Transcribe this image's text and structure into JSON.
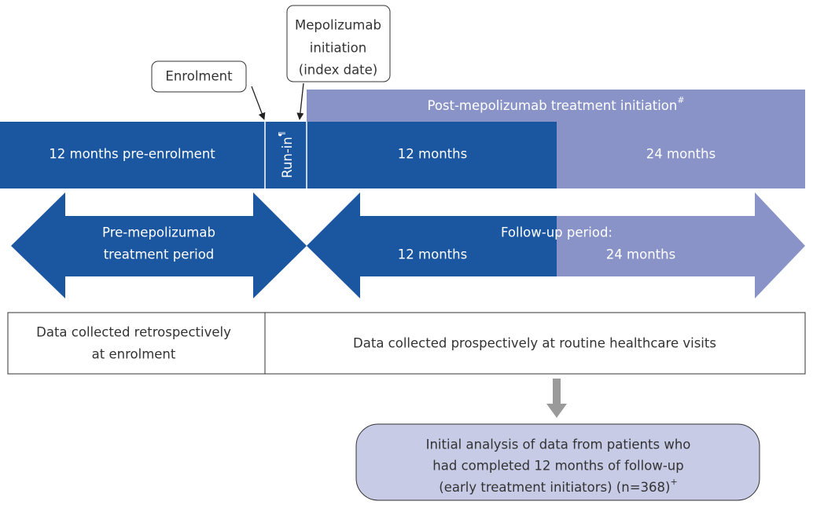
{
  "enrolment_callout": "Enrolment",
  "initiation_callout": [
    "Mepolizumab",
    "initiation",
    "(index date)"
  ],
  "post_bar": {
    "label": "Post-mepolizumab treatment initiation",
    "mark": "#"
  },
  "timeline": {
    "pre": "12 months pre-enrolment",
    "run_in": "Run-in",
    "run_in_mark": "¶",
    "months_12": "12 months",
    "months_24": "24 months"
  },
  "arrows": {
    "pre": [
      "Pre-mepolizumab",
      "treatment period"
    ],
    "follow_up": "Follow-up period:",
    "follow_12": "12 months",
    "follow_24": "24 months"
  },
  "collection": {
    "retro": [
      "Data collected retrospectively",
      "at enrolment"
    ],
    "prospective": "Data collected prospectively at routine healthcare visits"
  },
  "analysis": {
    "lines": [
      "Initial analysis of data from patients who",
      "had completed 12 months of follow-up",
      "(early treatment initiators) (n=368)"
    ],
    "mark": "+"
  }
}
